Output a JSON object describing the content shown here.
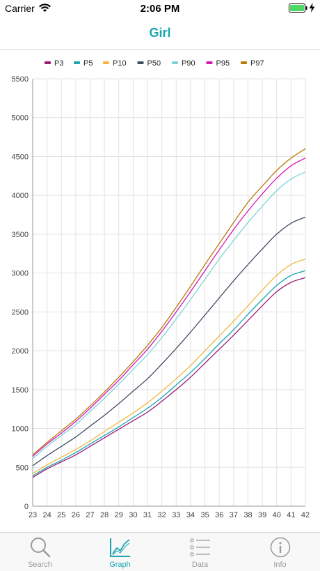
{
  "status_bar": {
    "carrier": "Carrier",
    "time": "2:06 PM"
  },
  "nav": {
    "title": "Girl"
  },
  "colors": {
    "accent": "#1aa6b0",
    "P3": "#9b1b77",
    "P5": "#1aa6b0",
    "P10": "#f3b640",
    "P50": "#414d66",
    "P90": "#7fd3d8",
    "P95": "#d417b6",
    "P97": "#b87c0c"
  },
  "chart_data": {
    "type": "line",
    "title": "",
    "xlabel": "",
    "ylabel": "",
    "x": [
      23,
      24,
      25,
      26,
      27,
      28,
      29,
      30,
      31,
      32,
      33,
      34,
      35,
      36,
      37,
      38,
      39,
      40,
      41,
      42
    ],
    "xlim": [
      23,
      42
    ],
    "ylim": [
      0,
      5500
    ],
    "yticks": [
      0,
      500,
      1000,
      1500,
      2000,
      2500,
      3000,
      3500,
      4000,
      4500,
      5000,
      5500
    ],
    "grid": true,
    "legend": "top",
    "series": [
      {
        "name": "P3",
        "color": "#9b1b77",
        "values": [
          370,
          480,
          570,
          660,
          770,
          880,
          990,
          1100,
          1210,
          1350,
          1500,
          1660,
          1840,
          2020,
          2200,
          2390,
          2580,
          2760,
          2880,
          2940
        ]
      },
      {
        "name": "P5",
        "color": "#1aa6b0",
        "values": [
          390,
          500,
          590,
          690,
          800,
          910,
          1020,
          1140,
          1260,
          1400,
          1560,
          1720,
          1900,
          2090,
          2270,
          2470,
          2660,
          2840,
          2970,
          3030
        ]
      },
      {
        "name": "P10",
        "color": "#f3b640",
        "values": [
          420,
          530,
          630,
          730,
          840,
          960,
          1080,
          1200,
          1330,
          1480,
          1640,
          1810,
          2000,
          2190,
          2380,
          2580,
          2780,
          2970,
          3110,
          3180
        ]
      },
      {
        "name": "P50",
        "color": "#414d66",
        "values": [
          520,
          650,
          770,
          890,
          1030,
          1170,
          1320,
          1480,
          1640,
          1830,
          2030,
          2240,
          2460,
          2680,
          2900,
          3110,
          3310,
          3500,
          3640,
          3720
        ]
      },
      {
        "name": "P90",
        "color": "#7fd3d8",
        "values": [
          610,
          770,
          910,
          1050,
          1220,
          1390,
          1570,
          1760,
          1950,
          2170,
          2410,
          2660,
          2920,
          3180,
          3420,
          3650,
          3860,
          4060,
          4210,
          4300
        ]
      },
      {
        "name": "P95",
        "color": "#d417b6",
        "values": [
          640,
          800,
          940,
          1090,
          1260,
          1440,
          1620,
          1820,
          2020,
          2250,
          2500,
          2760,
          3030,
          3300,
          3560,
          3800,
          4020,
          4220,
          4380,
          4480
        ]
      },
      {
        "name": "P97",
        "color": "#b87c0c",
        "values": [
          660,
          820,
          970,
          1120,
          1290,
          1470,
          1660,
          1860,
          2070,
          2300,
          2560,
          2830,
          3110,
          3380,
          3650,
          3910,
          4120,
          4320,
          4480,
          4600
        ]
      }
    ]
  },
  "tab_bar": {
    "active": "graph",
    "tabs": [
      {
        "key": "search",
        "label": "Search",
        "icon": "search-icon"
      },
      {
        "key": "graph",
        "label": "Graph",
        "icon": "chart-icon"
      },
      {
        "key": "data",
        "label": "Data",
        "icon": "list-icon"
      },
      {
        "key": "info",
        "label": "Info",
        "icon": "info-icon"
      }
    ]
  }
}
